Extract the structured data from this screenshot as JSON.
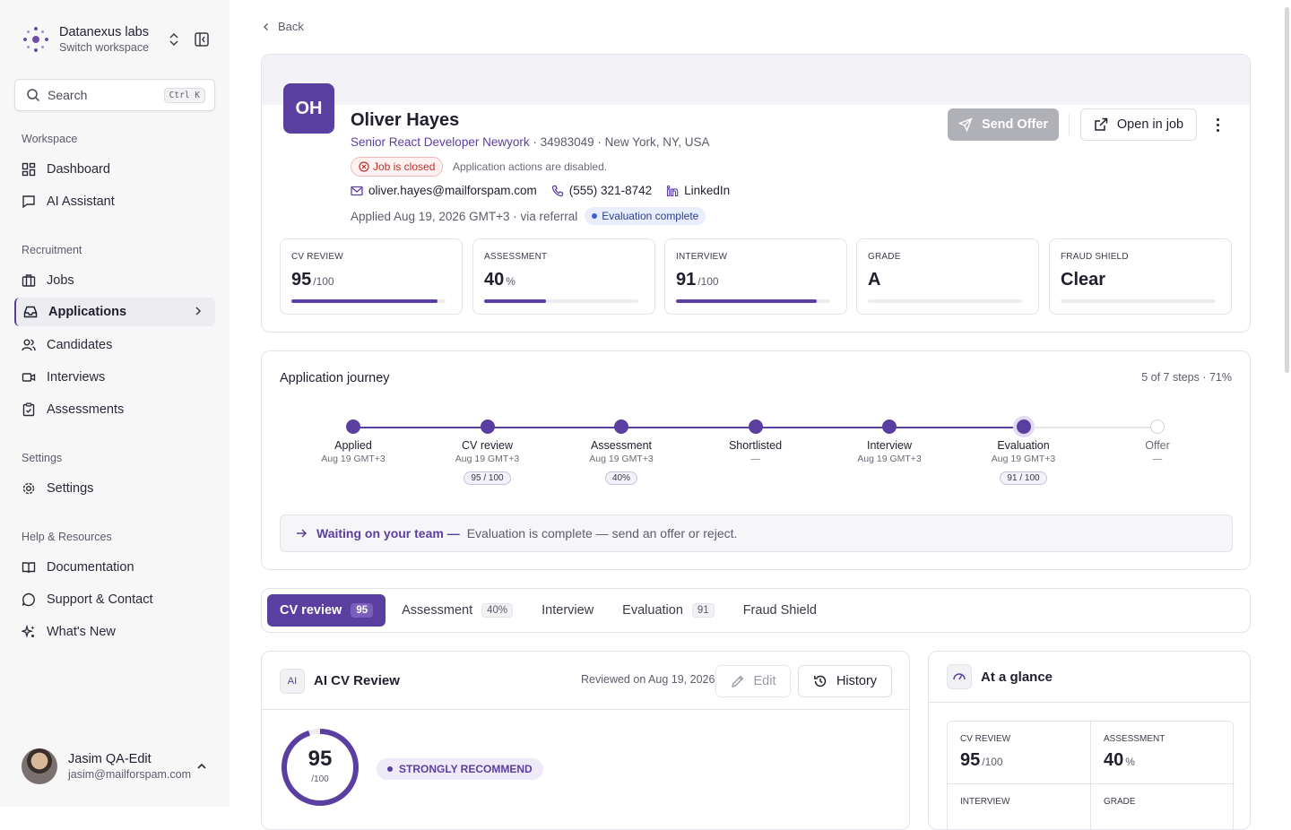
{
  "workspace": {
    "name": "Datanexus labs",
    "subtitle": "Switch workspace"
  },
  "search": {
    "label": "Search",
    "shortcut": "Ctrl K"
  },
  "nav": {
    "workspace_section": "Workspace",
    "dashboard": "Dashboard",
    "ai_assistant": "AI Assistant",
    "recruitment_section": "Recruitment",
    "jobs": "Jobs",
    "applications": "Applications",
    "candidates": "Candidates",
    "interviews": "Interviews",
    "assessments": "Assessments",
    "settings_section": "Settings",
    "settings": "Settings",
    "help_section": "Help & Resources",
    "documentation": "Documentation",
    "support": "Support & Contact",
    "whats_new": "What's New"
  },
  "user": {
    "name": "Jasim QA-Edit",
    "email": "jasim@mailforspam.com"
  },
  "back_label": "Back",
  "candidate": {
    "initials": "OH",
    "name": "Oliver Hayes",
    "role": "Senior React Developer Newyork",
    "meta": "· 34983049 · New York, NY, USA",
    "job_status": "Job is closed",
    "actions_note": "Application actions are disabled.",
    "email": "oliver.hayes@mailforspam.com",
    "phone": "(555) 321-8742",
    "linkedin": "LinkedIn",
    "applied": "Applied Aug 19, 2026 GMT+3 · via referral",
    "status": "Evaluation complete"
  },
  "actions": {
    "send_offer": "Send Offer",
    "open_in_job": "Open in job"
  },
  "metrics": [
    {
      "label": "CV REVIEW",
      "value": "95",
      "unit": "/100",
      "progress": 95
    },
    {
      "label": "ASSESSMENT",
      "value": "40",
      "unit": "%",
      "progress": 40
    },
    {
      "label": "INTERVIEW",
      "value": "91",
      "unit": "/100",
      "progress": 91
    },
    {
      "label": "GRADE",
      "value": "A",
      "unit": "",
      "progress": 0
    },
    {
      "label": "FRAUD SHIELD",
      "value": "Clear",
      "unit": "",
      "progress": 0
    }
  ],
  "journey": {
    "title": "Application journey",
    "steps_info": "5 of 7 steps · 71%",
    "steps": [
      {
        "name": "Applied",
        "date": "Aug 19 GMT+3",
        "score": "",
        "state": "done"
      },
      {
        "name": "CV review",
        "date": "Aug 19 GMT+3",
        "score": "95 / 100",
        "state": "done"
      },
      {
        "name": "Assessment",
        "date": "Aug 19 GMT+3",
        "score": "40%",
        "state": "done"
      },
      {
        "name": "Shortlisted",
        "date": "—",
        "score": "",
        "state": "done"
      },
      {
        "name": "Interview",
        "date": "Aug 19 GMT+3",
        "score": "",
        "state": "done"
      },
      {
        "name": "Evaluation",
        "date": "Aug 19 GMT+3",
        "score": "91 / 100",
        "state": "current"
      },
      {
        "name": "Offer",
        "date": "—",
        "score": "",
        "state": "pending"
      }
    ],
    "waiting_lead": "Waiting on your team —",
    "waiting_msg": "Evaluation is complete — send an offer or reject."
  },
  "tabs": [
    {
      "label": "CV review",
      "count": "95",
      "active": true
    },
    {
      "label": "Assessment",
      "count": "40%",
      "active": false
    },
    {
      "label": "Interview",
      "count": "",
      "active": false
    },
    {
      "label": "Evaluation",
      "count": "91",
      "active": false
    },
    {
      "label": "Fraud Shield",
      "count": "",
      "active": false
    }
  ],
  "review": {
    "chip": "AI",
    "title": "AI CV Review",
    "reviewed_on": "Reviewed on Aug 19, 2026",
    "edit_label": "Edit",
    "history_label": "History",
    "score": "95",
    "score_unit": "/100",
    "score_value": 95,
    "recommendation": "STRONGLY RECOMMEND"
  },
  "glance": {
    "title": "At a glance",
    "cells": [
      {
        "label": "CV REVIEW",
        "value": "95",
        "unit": "/100"
      },
      {
        "label": "ASSESSMENT",
        "value": "40",
        "unit": "%"
      },
      {
        "label": "INTERVIEW",
        "value": "",
        "unit": ""
      },
      {
        "label": "GRADE",
        "value": "",
        "unit": ""
      }
    ]
  },
  "colors": {
    "accent": "#5b3fa0",
    "danger": "#c0302b",
    "info": "#3f5fd6"
  }
}
